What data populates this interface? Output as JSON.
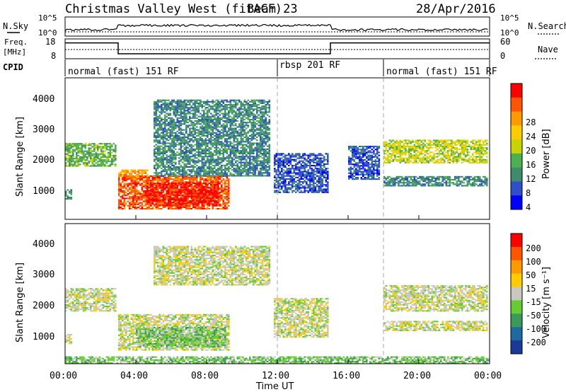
{
  "header": {
    "title": "Christmas Valley West (fitACF)",
    "beam": "Beam 23",
    "date": "28/Apr/2016"
  },
  "noise_panel": {
    "left_label": "N.Sky",
    "right_label": "N.Search",
    "left_ticks": [
      "10^5",
      "10^0"
    ],
    "right_ticks": [
      "10^5",
      "10^0"
    ]
  },
  "freq_panel": {
    "left_label_line1": "Freq.",
    "left_label_line2": "[MHz]",
    "right_label": "Nave",
    "left_ticks": [
      "18",
      "8"
    ],
    "right_ticks": [
      "60",
      "0"
    ]
  },
  "cpid": {
    "label": "CPID",
    "segments": [
      {
        "name": "normal (fast) 151 RF",
        "start_hour": 0
      },
      {
        "name": "rbsp 201 RF",
        "start_hour": 12
      },
      {
        "name": "normal (fast) 151 RF",
        "start_hour": 18
      }
    ]
  },
  "power_panel": {
    "ylabel": "Slant Range [km]",
    "cbar_label": "Power [dB]",
    "yticks": [
      "4000",
      "3000",
      "2000",
      "1000"
    ],
    "cbar_ticks": [
      "28",
      "24",
      "20",
      "16",
      "12",
      "8",
      "4"
    ]
  },
  "velocity_panel": {
    "ylabel": "Slant Range [km]",
    "cbar_label": "Velocity [m s⁻¹]",
    "yticks": [
      "4000",
      "3000",
      "2000",
      "1000"
    ],
    "cbar_ticks": [
      "200",
      "100",
      "50",
      "15",
      "-15",
      "-50",
      "-100",
      "-200"
    ]
  },
  "xaxis": {
    "label": "Time UT",
    "ticks": [
      "00:00",
      "04:00",
      "08:00",
      "12:00",
      "16:00",
      "20:00",
      "00:00"
    ]
  },
  "colors": {
    "power_scale": [
      "#0000ff",
      "#2e4fc9",
      "#3d8c6e",
      "#4caf50",
      "#c8d400",
      "#ffcc00",
      "#ff9900",
      "#ff5500",
      "#ff0000"
    ],
    "velocity_scale": [
      "#ff0000",
      "#ff5500",
      "#ff9900",
      "#ffcc00",
      "#c8c8c0",
      "#66cc33",
      "#3a9a5a",
      "#1e6aa0",
      "#1a3a9a"
    ],
    "ground_scatter": "#c8c8c0"
  },
  "chart_data": {
    "type": "heatmap",
    "x_range_hours": [
      0,
      24
    ],
    "y_range_km": [
      200,
      4500
    ],
    "grid": false,
    "power_regions": [
      {
        "t0": 0.0,
        "t1": 2.9,
        "r0": 1800,
        "r1": 2500,
        "level": 3
      },
      {
        "t0": 0.0,
        "t1": 0.4,
        "r0": 800,
        "r1": 1100,
        "level": 2
      },
      {
        "t0": 3.0,
        "t1": 4.6,
        "r0": 1400,
        "r1": 1700,
        "level": 6
      },
      {
        "t0": 3.0,
        "t1": 9.2,
        "r0": 500,
        "r1": 1500,
        "level": 7
      },
      {
        "t0": 4.6,
        "t1": 8.6,
        "r0": 600,
        "r1": 1300,
        "level": 8
      },
      {
        "t0": 5.0,
        "t1": 11.5,
        "r0": 1500,
        "r1": 3800,
        "level": 2
      },
      {
        "t0": 11.8,
        "t1": 14.8,
        "r0": 1000,
        "r1": 2200,
        "level": 1
      },
      {
        "t0": 16.0,
        "t1": 17.8,
        "r0": 1400,
        "r1": 2400,
        "level": 1
      },
      {
        "t0": 18.0,
        "t1": 23.9,
        "r0": 1900,
        "r1": 2600,
        "level": 4
      },
      {
        "t0": 18.0,
        "t1": 23.9,
        "r0": 1200,
        "r1": 1500,
        "level": 2
      }
    ],
    "velocity_regions": [
      {
        "t0": 0.0,
        "t1": 2.9,
        "r0": 1800,
        "r1": 2500,
        "level": 4
      },
      {
        "t0": 0.0,
        "t1": 0.4,
        "r0": 800,
        "r1": 1100,
        "level": 4
      },
      {
        "t0": 3.0,
        "t1": 9.2,
        "r0": 600,
        "r1": 1700,
        "level": 4
      },
      {
        "t0": 4.0,
        "t1": 9.0,
        "r0": 700,
        "r1": 1300,
        "level": 5
      },
      {
        "t0": 5.0,
        "t1": 11.5,
        "r0": 2600,
        "r1": 3800,
        "level": 4
      },
      {
        "t0": 11.8,
        "t1": 14.8,
        "r0": 1000,
        "r1": 2200,
        "level": 4
      },
      {
        "t0": 18.0,
        "t1": 23.9,
        "r0": 1800,
        "r1": 2600,
        "level": 4
      },
      {
        "t0": 18.0,
        "t1": 23.9,
        "r0": 1200,
        "r1": 1500,
        "level": 4
      },
      {
        "t0": 0.0,
        "t1": 24.0,
        "r0": 200,
        "r1": 400,
        "level": 5
      }
    ],
    "freq_series": [
      {
        "t0": 0,
        "t1": 3,
        "mhz": 16
      },
      {
        "t0": 3,
        "t1": 15,
        "mhz": 10.5
      },
      {
        "t0": 15,
        "t1": 24,
        "mhz": 16
      }
    ]
  }
}
